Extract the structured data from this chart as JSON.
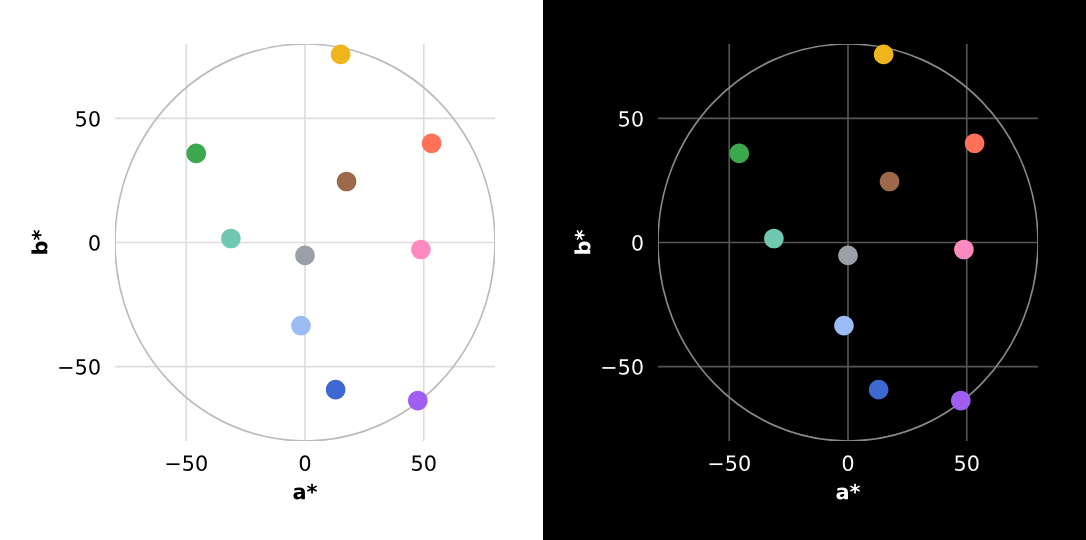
{
  "chart_data": [
    {
      "type": "scatter",
      "xlabel": "a*",
      "ylabel": "b*",
      "xlim": [
        -80,
        80
      ],
      "ylim": [
        -80,
        80
      ],
      "xticks": [
        -50,
        0,
        50
      ],
      "yticks": [
        -50,
        0,
        50
      ],
      "grid": true,
      "series": [
        {
          "marker": "circle",
          "x": [
            15,
            53.3,
            -45.8,
            17.5,
            -31.2,
            48.8,
            0,
            -1.7,
            12.9,
            47.5
          ],
          "values": [
            75.8,
            40,
            35.9,
            24.6,
            1.6,
            -2.8,
            -5.2,
            -33.5,
            -59.3,
            -63.7
          ],
          "colors": [
            "#f0b41c",
            "#ff7259",
            "#3ba84d",
            "#9c6a4a",
            "#6fc8b0",
            "#ff8ac0",
            "#9aa0a8",
            "#9bbcf5",
            "#3d67d1",
            "#a05ef0"
          ]
        }
      ]
    },
    {
      "type": "scatter",
      "xlabel": "a*",
      "ylabel": "b*",
      "xlim": [
        -80,
        80
      ],
      "ylim": [
        -80,
        80
      ],
      "xticks": [
        -50,
        0,
        50
      ],
      "yticks": [
        -50,
        0,
        50
      ],
      "grid": true,
      "series": [
        {
          "marker": "circle",
          "x": [
            15,
            53.3,
            -45.8,
            17.5,
            -31.2,
            48.8,
            0,
            -1.7,
            12.9,
            47.5
          ],
          "values": [
            75.8,
            40,
            35.9,
            24.6,
            1.6,
            -2.8,
            -5.2,
            -33.5,
            -59.3,
            -63.7
          ],
          "colors": [
            "#f0b41c",
            "#ff7259",
            "#3ba84d",
            "#9c6a4a",
            "#6fc8b0",
            "#ff8ac0",
            "#9aa0a8",
            "#9bbcf5",
            "#3d67d1",
            "#a05ef0"
          ]
        }
      ]
    }
  ]
}
